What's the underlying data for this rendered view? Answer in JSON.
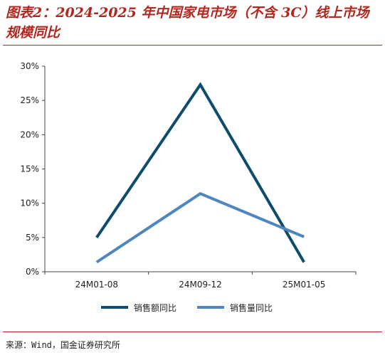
{
  "title": "图表2：2024-2025 年中国家电市场（不含 3C）线上市场规模同比",
  "source": "来源：Wind，国金证券研究所",
  "chart_data": {
    "type": "line",
    "categories": [
      "24M01-08",
      "24M09-12",
      "25M01-05"
    ],
    "series": [
      {
        "name": "销售额同比",
        "values": [
          5.0,
          27.3,
          1.4
        ],
        "color": "#0d4d6b"
      },
      {
        "name": "销售量同比",
        "values": [
          1.4,
          11.4,
          5.1
        ],
        "color": "#4f86c0"
      }
    ],
    "ylim": [
      0,
      30
    ],
    "yticks": [
      "0%",
      "5%",
      "10%",
      "15%",
      "20%",
      "25%",
      "30%"
    ],
    "ytick_values": [
      0,
      5,
      10,
      15,
      20,
      25,
      30
    ],
    "grid": false,
    "legend": "bottom-center"
  }
}
